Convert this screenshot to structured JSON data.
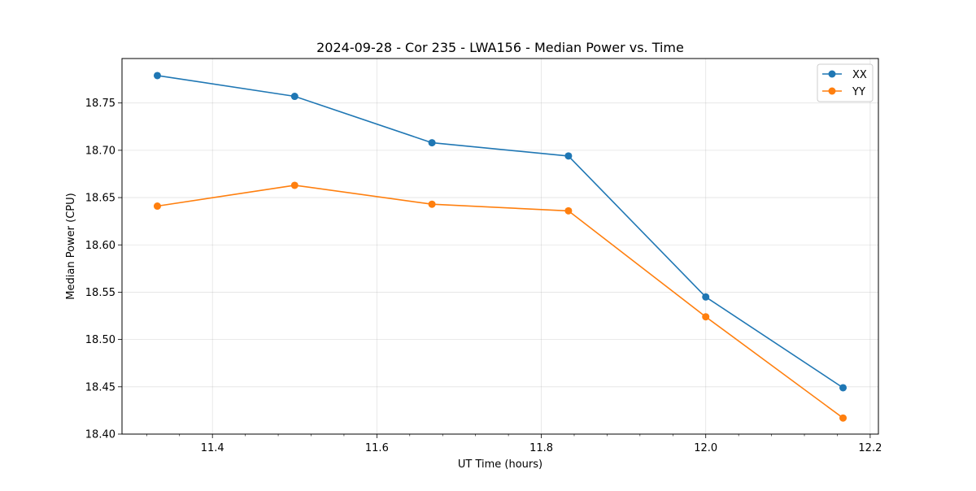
{
  "chart_data": {
    "type": "line",
    "title": "2024-09-28 - Cor 235 - LWA156 - Median Power vs. Time",
    "xlabel": "UT Time (hours)",
    "ylabel": "Median Power (CPU)",
    "xlim": [
      11.29,
      12.21
    ],
    "ylim": [
      18.4,
      18.797
    ],
    "xticks": [
      "11.4",
      "11.6",
      "11.8",
      "12.0",
      "12.2"
    ],
    "yticks": [
      "18.40",
      "18.45",
      "18.50",
      "18.55",
      "18.60",
      "18.65",
      "18.70",
      "18.75"
    ],
    "grid": true,
    "legend_position": "top-right",
    "x": [
      11.333,
      11.5,
      11.667,
      11.833,
      12.0,
      12.167
    ],
    "series": [
      {
        "name": "XX",
        "color": "#1f77b4",
        "values": [
          18.779,
          18.757,
          18.708,
          18.694,
          18.545,
          18.449
        ]
      },
      {
        "name": "YY",
        "color": "#ff7f0e",
        "values": [
          18.641,
          18.663,
          18.643,
          18.636,
          18.524,
          18.417
        ]
      }
    ]
  }
}
